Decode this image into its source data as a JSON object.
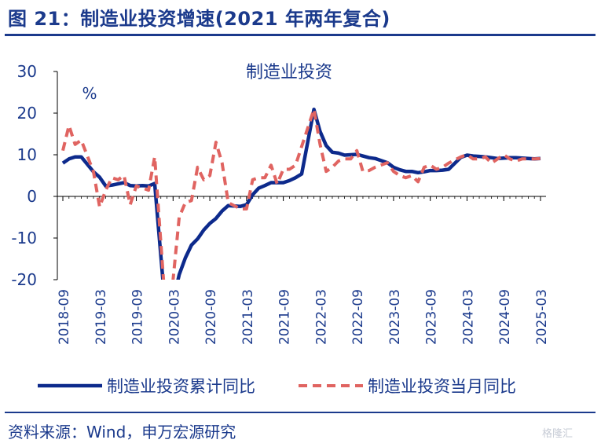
{
  "figure_title": "图 21：制造业投资增速(2021 年两年复合)",
  "source": "资料来源：Wind，申万宏源研究",
  "watermark": "格隆汇",
  "chart_data": {
    "type": "line",
    "title": "制造业投资",
    "ylabel": "%",
    "xlabel": "",
    "ylim": [
      -20,
      30
    ],
    "yticks": [
      30,
      20,
      10,
      0,
      -10,
      -20
    ],
    "xtick_labels": [
      "2018-09",
      "2019-03",
      "2019-09",
      "2020-03",
      "2020-09",
      "2021-03",
      "2021-09",
      "2022-03",
      "2022-09",
      "2023-03",
      "2023-09",
      "2024-03",
      "2024-09",
      "2025-03"
    ],
    "grid": false,
    "legend_position": "bottom",
    "x": [
      "2018-09",
      "2018-10",
      "2018-11",
      "2018-12",
      "2019-02",
      "2019-03",
      "2019-04",
      "2019-05",
      "2019-06",
      "2019-07",
      "2019-08",
      "2019-09",
      "2019-10",
      "2019-11",
      "2019-12",
      "2020-02",
      "2020-03",
      "2020-04",
      "2020-05",
      "2020-06",
      "2020-07",
      "2020-08",
      "2020-09",
      "2020-10",
      "2020-11",
      "2020-12",
      "2021-02",
      "2021-03",
      "2021-04",
      "2021-05",
      "2021-06",
      "2021-07",
      "2021-08",
      "2021-09",
      "2021-10",
      "2021-11",
      "2021-12",
      "2022-02",
      "2022-03",
      "2022-04",
      "2022-05",
      "2022-06",
      "2022-07",
      "2022-08",
      "2022-09",
      "2022-10",
      "2022-11",
      "2022-12",
      "2023-02",
      "2023-03",
      "2023-04",
      "2023-05",
      "2023-06",
      "2023-07",
      "2023-08",
      "2023-09",
      "2023-10",
      "2023-11",
      "2023-12",
      "2024-02",
      "2024-03",
      "2024-04",
      "2024-05",
      "2024-06",
      "2024-07",
      "2024-08",
      "2024-09",
      "2024-10",
      "2024-11",
      "2024-12",
      "2025-02",
      "2025-03"
    ],
    "series": [
      {
        "name": "制造业投资累计同比",
        "color": "#0d2a8c",
        "style": "solid",
        "values": [
          8.0,
          9.0,
          9.5,
          9.5,
          5.9,
          4.6,
          2.5,
          2.7,
          3.0,
          3.3,
          2.6,
          2.5,
          2.6,
          2.5,
          3.1,
          -31.5,
          -25.2,
          -18.8,
          -14.8,
          -11.7,
          -10.2,
          -8.1,
          -6.5,
          -5.3,
          -3.5,
          -2.2,
          -2.4,
          -2.0,
          0.4,
          2.0,
          2.6,
          3.3,
          3.3,
          3.3,
          3.8,
          4.5,
          5.4,
          20.9,
          15.6,
          12.2,
          10.6,
          10.4,
          9.9,
          10.0,
          10.1,
          9.7,
          9.3,
          9.1,
          8.1,
          7.0,
          6.4,
          6.0,
          6.0,
          5.7,
          5.9,
          6.2,
          6.2,
          6.3,
          6.5,
          9.4,
          9.9,
          9.7,
          9.6,
          9.5,
          9.3,
          9.1,
          9.2,
          9.3,
          9.3,
          9.2,
          9.0,
          9.1
        ]
      },
      {
        "name": "制造业投资当月同比",
        "color": "#e06461",
        "style": "dashed",
        "values": [
          11.0,
          17.0,
          12.5,
          13.5,
          5.9,
          -2.5,
          1.5,
          4.5,
          4.0,
          5.0,
          -2.0,
          2.5,
          2.0,
          1.5,
          9.5,
          -31.5,
          -20.0,
          -5.0,
          -1.5,
          -1.0,
          7.0,
          4.0,
          5.0,
          13.0,
          8.0,
          -1.5,
          -3.0,
          -3.0,
          4.0,
          4.5,
          4.5,
          7.5,
          3.0,
          6.5,
          6.5,
          7.5,
          12.0,
          20.9,
          12.5,
          6.0,
          7.0,
          8.5,
          9.0,
          9.0,
          11.0,
          6.0,
          6.2,
          7.0,
          8.1,
          6.0,
          5.0,
          4.5,
          5.0,
          3.5,
          7.0,
          7.5,
          6.5,
          7.0,
          8.0,
          9.5,
          10.0,
          9.0,
          9.0,
          9.5,
          8.0,
          9.0,
          10.0,
          9.0,
          8.5,
          9.0,
          9.0,
          9.1
        ]
      }
    ]
  }
}
